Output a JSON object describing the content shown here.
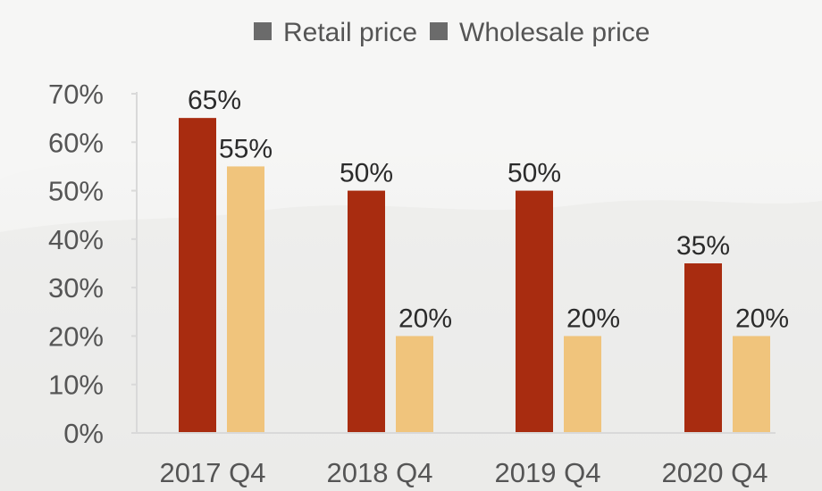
{
  "chart_data": {
    "type": "bar",
    "title": "",
    "xlabel": "",
    "ylabel": "",
    "categories": [
      "2017 Q4",
      "2018 Q4",
      "2019 Q4",
      "2020 Q4"
    ],
    "series": [
      {
        "name": "Retail price",
        "values": [
          65,
          50,
          50,
          35
        ],
        "labels": [
          "65%",
          "50%",
          "50%",
          "35%"
        ],
        "color": "#a82c10"
      },
      {
        "name": "Wholesale price",
        "values": [
          55,
          20,
          20,
          20
        ],
        "labels": [
          "55%",
          "20%",
          "20%",
          "20%"
        ],
        "color": "#f0c47c"
      }
    ],
    "ylim": [
      0,
      70
    ],
    "yticks": [
      {
        "value": 0,
        "label": "0%"
      },
      {
        "value": 10,
        "label": "10%"
      },
      {
        "value": 20,
        "label": "20%"
      },
      {
        "value": 30,
        "label": "30%"
      },
      {
        "value": 40,
        "label": "40%"
      },
      {
        "value": 50,
        "label": "50%"
      },
      {
        "value": 60,
        "label": "60%"
      },
      {
        "value": 70,
        "label": "70%"
      }
    ],
    "grid": false,
    "legend": {
      "position": "top",
      "marker_color": "#6b6b6b"
    }
  }
}
